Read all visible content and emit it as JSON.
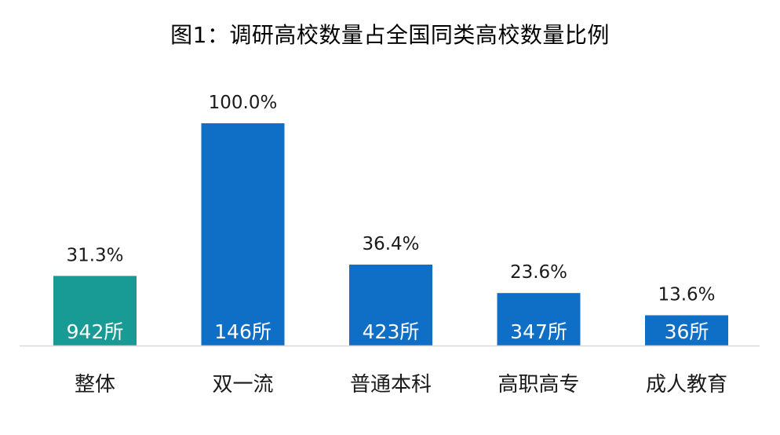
{
  "chart_data": {
    "type": "bar",
    "title": "图1：调研高校数量占全国同类高校数量比例",
    "xlabel": "",
    "ylabel": "",
    "ylim": [
      0,
      100
    ],
    "grid": false,
    "legend": "none",
    "categories": [
      "整体",
      "双一流",
      "普通本科",
      "高职高专",
      "成人教育"
    ],
    "values": [
      31.3,
      100.0,
      36.4,
      23.6,
      13.6
    ],
    "value_labels": [
      "31.3%",
      "100.0%",
      "36.4%",
      "23.6%",
      "13.6%"
    ],
    "count_labels": [
      "942所",
      "146所",
      "423所",
      "347所",
      "36所"
    ],
    "bar_colors": [
      "#189b94",
      "#0f6fc6",
      "#0f6fc6",
      "#0f6fc6",
      "#0f6fc6"
    ],
    "axis_color": "#d9d9d9"
  }
}
